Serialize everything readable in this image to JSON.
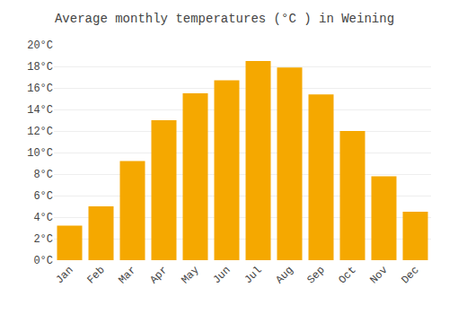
{
  "chart_data": {
    "type": "bar",
    "title": "Average monthly temperatures (°C ) in Weining",
    "categories": [
      "Jan",
      "Feb",
      "Mar",
      "Apr",
      "May",
      "Jun",
      "Jul",
      "Aug",
      "Sep",
      "Oct",
      "Nov",
      "Dec"
    ],
    "values": [
      3.2,
      5.0,
      9.2,
      13.0,
      15.5,
      16.7,
      18.5,
      17.9,
      15.4,
      12.0,
      7.8,
      4.5
    ],
    "color": "#F5A800",
    "ylim": [
      0,
      20
    ],
    "yticks": [
      {
        "value": 0,
        "label": "0°C"
      },
      {
        "value": 2,
        "label": "2°C"
      },
      {
        "value": 4,
        "label": "4°C"
      },
      {
        "value": 6,
        "label": "6°C"
      },
      {
        "value": 8,
        "label": "8°C"
      },
      {
        "value": 10,
        "label": "10°C"
      },
      {
        "value": 12,
        "label": "12°C"
      },
      {
        "value": 14,
        "label": "14°C"
      },
      {
        "value": 16,
        "label": "16°C"
      },
      {
        "value": 18,
        "label": "18°C"
      },
      {
        "value": 20,
        "label": "20°C"
      }
    ],
    "grid": true
  }
}
